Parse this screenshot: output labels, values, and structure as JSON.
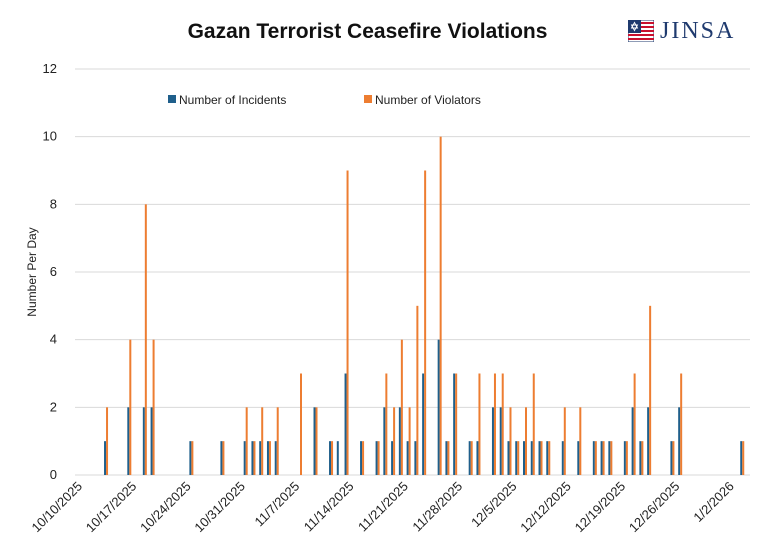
{
  "title": "Gazan Terrorist Ceasefire Violations",
  "brand": {
    "text": "JINSA",
    "icon": "flag-icon",
    "color": "#1f3a6e"
  },
  "chart_data": {
    "type": "bar",
    "title": "Gazan Terrorist Ceasefire Violations",
    "xlabel": "",
    "ylabel": "Number Per Day",
    "ylim": [
      0,
      12
    ],
    "yticks": [
      0,
      2,
      4,
      6,
      8,
      10,
      12
    ],
    "xlim": [
      "10/10/2025",
      "1/5/2026"
    ],
    "xticks": [
      "10/10/2025",
      "10/17/2025",
      "10/24/2025",
      "10/31/2025",
      "11/7/2025",
      "11/14/2025",
      "11/21/2025",
      "11/28/2025",
      "12/5/2025",
      "12/12/2025",
      "12/19/2025",
      "12/26/2025",
      "1/2/2026"
    ],
    "grid": true,
    "legend_position": "top",
    "colors": {
      "incidents": "#1f5f8b",
      "violators": "#ed7d31",
      "grid": "#d9d9d9"
    },
    "series": [
      {
        "name": "Number of Incidents",
        "values": [
          [
            "10/14/2025",
            1
          ],
          [
            "10/17/2025",
            2
          ],
          [
            "10/19/2025",
            2
          ],
          [
            "10/20/2025",
            2
          ],
          [
            "10/25/2025",
            1
          ],
          [
            "10/29/2025",
            1
          ],
          [
            "11/1/2025",
            1
          ],
          [
            "11/2/2025",
            1
          ],
          [
            "11/3/2025",
            1
          ],
          [
            "11/4/2025",
            1
          ],
          [
            "11/5/2025",
            1
          ],
          [
            "11/10/2025",
            2
          ],
          [
            "11/12/2025",
            1
          ],
          [
            "11/13/2025",
            1
          ],
          [
            "11/14/2025",
            3
          ],
          [
            "11/16/2025",
            1
          ],
          [
            "11/18/2025",
            1
          ],
          [
            "11/19/2025",
            2
          ],
          [
            "11/20/2025",
            1
          ],
          [
            "11/21/2025",
            2
          ],
          [
            "11/22/2025",
            1
          ],
          [
            "11/23/2025",
            1
          ],
          [
            "11/24/2025",
            3
          ],
          [
            "11/26/2025",
            4
          ],
          [
            "11/27/2025",
            1
          ],
          [
            "11/28/2025",
            3
          ],
          [
            "11/30/2025",
            1
          ],
          [
            "12/1/2025",
            1
          ],
          [
            "12/3/2025",
            2
          ],
          [
            "12/4/2025",
            2
          ],
          [
            "12/5/2025",
            1
          ],
          [
            "12/6/2025",
            1
          ],
          [
            "12/7/2025",
            1
          ],
          [
            "12/8/2025",
            1
          ],
          [
            "12/9/2025",
            1
          ],
          [
            "12/10/2025",
            1
          ],
          [
            "12/12/2025",
            1
          ],
          [
            "12/14/2025",
            1
          ],
          [
            "12/16/2025",
            1
          ],
          [
            "12/17/2025",
            1
          ],
          [
            "12/18/2025",
            1
          ],
          [
            "12/20/2025",
            1
          ],
          [
            "12/21/2025",
            2
          ],
          [
            "12/22/2025",
            1
          ],
          [
            "12/23/2025",
            2
          ],
          [
            "12/26/2025",
            1
          ],
          [
            "12/27/2025",
            2
          ],
          [
            "1/4/2026",
            1
          ]
        ]
      },
      {
        "name": "Number of Violators",
        "values": [
          [
            "10/14/2025",
            2
          ],
          [
            "10/17/2025",
            4
          ],
          [
            "10/19/2025",
            8
          ],
          [
            "10/20/2025",
            4
          ],
          [
            "10/25/2025",
            1
          ],
          [
            "10/29/2025",
            1
          ],
          [
            "11/1/2025",
            2
          ],
          [
            "11/2/2025",
            1
          ],
          [
            "11/3/2025",
            2
          ],
          [
            "11/4/2025",
            1
          ],
          [
            "11/5/2025",
            2
          ],
          [
            "11/8/2025",
            3
          ],
          [
            "11/10/2025",
            2
          ],
          [
            "11/12/2025",
            1
          ],
          [
            "11/14/2025",
            9
          ],
          [
            "11/16/2025",
            1
          ],
          [
            "11/18/2025",
            1
          ],
          [
            "11/19/2025",
            3
          ],
          [
            "11/20/2025",
            2
          ],
          [
            "11/21/2025",
            4
          ],
          [
            "11/22/2025",
            2
          ],
          [
            "11/23/2025",
            5
          ],
          [
            "11/24/2025",
            9
          ],
          [
            "11/26/2025",
            10
          ],
          [
            "11/27/2025",
            1
          ],
          [
            "11/28/2025",
            3
          ],
          [
            "11/30/2025",
            1
          ],
          [
            "12/1/2025",
            3
          ],
          [
            "12/3/2025",
            3
          ],
          [
            "12/4/2025",
            3
          ],
          [
            "12/5/2025",
            2
          ],
          [
            "12/6/2025",
            1
          ],
          [
            "12/7/2025",
            2
          ],
          [
            "12/8/2025",
            3
          ],
          [
            "12/9/2025",
            1
          ],
          [
            "12/10/2025",
            1
          ],
          [
            "12/12/2025",
            2
          ],
          [
            "12/14/2025",
            2
          ],
          [
            "12/16/2025",
            1
          ],
          [
            "12/17/2025",
            1
          ],
          [
            "12/18/2025",
            1
          ],
          [
            "12/20/2025",
            1
          ],
          [
            "12/21/2025",
            3
          ],
          [
            "12/22/2025",
            1
          ],
          [
            "12/23/2025",
            5
          ],
          [
            "12/26/2025",
            1
          ],
          [
            "12/27/2025",
            3
          ],
          [
            "1/4/2026",
            1
          ]
        ]
      }
    ]
  }
}
